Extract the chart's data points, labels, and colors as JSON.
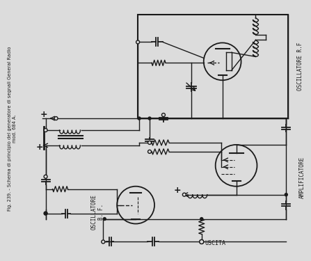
{
  "bg_color": "#dcdcdc",
  "line_color": "#1a1a1a",
  "text_color": "#1a1a1a",
  "title_text": "Fig. 239. - Schema di principio del generatore di segnali General Radio\nmod. 684 A.",
  "label_oscillatore_rf": "OSCILLATORE R.F",
  "label_amplificatore": "AMPLIFICATORE",
  "label_oscillatore_bf": "OSCILLATORE\nB. F.",
  "label_uscita": "USCITA",
  "figsize": [
    4.47,
    3.75
  ],
  "dpi": 100
}
